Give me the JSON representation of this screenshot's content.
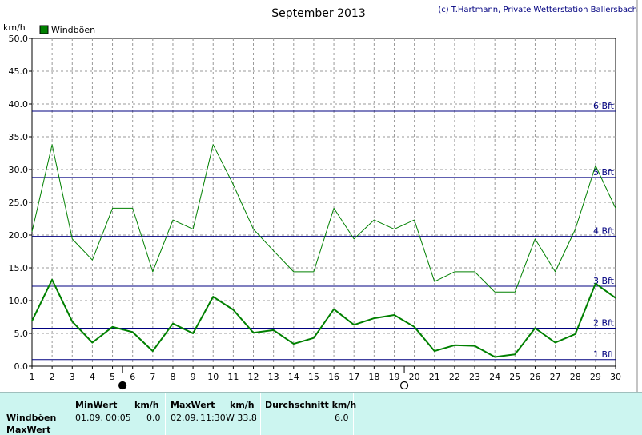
{
  "page": {
    "title": "September 2013",
    "copyright": "(c) T.Hartmann, Private Wetterstation Ballersbach",
    "y_unit": "km/h"
  },
  "chart_data": {
    "type": "line",
    "title": "September 2013",
    "ylabel": "km/h",
    "xlim": [
      1,
      30
    ],
    "ylim": [
      0,
      50
    ],
    "x_ticks": [
      1,
      2,
      3,
      4,
      5,
      6,
      7,
      8,
      9,
      10,
      11,
      12,
      13,
      14,
      15,
      16,
      17,
      18,
      19,
      20,
      21,
      22,
      23,
      24,
      25,
      26,
      27,
      28,
      29,
      30
    ],
    "y_ticks": [
      "0.0",
      "5.0",
      "10.0",
      "15.0",
      "20.0",
      "25.0",
      "30.0",
      "35.0",
      "40.0",
      "45.0",
      "50.0"
    ],
    "grid": true,
    "legend": [
      {
        "name": "Windböen",
        "color": "#008000"
      }
    ],
    "legend_position": "top-left",
    "series": [
      {
        "name": "Windböen",
        "color": "#008000",
        "x": [
          1,
          2,
          3,
          4,
          5,
          6,
          7,
          8,
          9,
          10,
          11,
          12,
          13,
          14,
          15,
          16,
          17,
          18,
          19,
          20,
          21,
          22,
          23,
          24,
          25,
          26,
          27,
          28,
          29,
          30
        ],
        "values": [
          20.5,
          33.8,
          19.4,
          16.2,
          24.1,
          24.1,
          14.4,
          22.3,
          20.9,
          33.8,
          27.7,
          20.9,
          17.6,
          14.4,
          14.4,
          24.1,
          19.4,
          22.3,
          20.9,
          22.3,
          12.9,
          14.4,
          14.4,
          11.3,
          11.3,
          19.4,
          14.4,
          20.9,
          30.6,
          24.1
        ]
      },
      {
        "name": "",
        "color": "#008000",
        "x": [
          1,
          2,
          3,
          4,
          5,
          6,
          7,
          8,
          9,
          10,
          11,
          12,
          13,
          14,
          15,
          16,
          17,
          18,
          19,
          20,
          21,
          22,
          23,
          24,
          25,
          26,
          27,
          28,
          29,
          30
        ],
        "values": [
          6.9,
          13.2,
          6.8,
          3.6,
          6.0,
          5.2,
          2.3,
          6.5,
          5.0,
          10.6,
          8.6,
          5.1,
          5.5,
          3.4,
          4.3,
          8.7,
          6.3,
          7.3,
          7.8,
          6.0,
          2.3,
          3.2,
          3.1,
          1.4,
          1.8,
          5.8,
          3.6,
          4.9,
          12.6,
          10.4
        ]
      }
    ],
    "reference_lines": [
      {
        "label": "1 Bft",
        "value": 1.0
      },
      {
        "label": "2 Bft",
        "value": 5.8
      },
      {
        "label": "3 Bft",
        "value": 12.2
      },
      {
        "label": "4 Bft",
        "value": 19.8
      },
      {
        "label": "5 Bft",
        "value": 28.8
      },
      {
        "label": "6 Bft",
        "value": 38.9
      }
    ],
    "reference_line_color": "#000080",
    "moon_phases": [
      {
        "day": 5.5,
        "phase": "new"
      },
      {
        "day": 19.5,
        "phase": "full"
      }
    ]
  },
  "stats": {
    "rows": [
      "Windböen",
      "MaxWert"
    ],
    "min_header": "MinWert",
    "min_unit": "km/h",
    "min_date": "01.09.",
    "min_time": "00:05",
    "min_value": "0.0",
    "max_header": "MaxWert",
    "max_unit": "km/h",
    "max_date": "02.09.",
    "max_time": "11:30",
    "max_value": "W 33.8",
    "avg_header": "Durchschnitt km/h",
    "avg_value": "6.0"
  }
}
